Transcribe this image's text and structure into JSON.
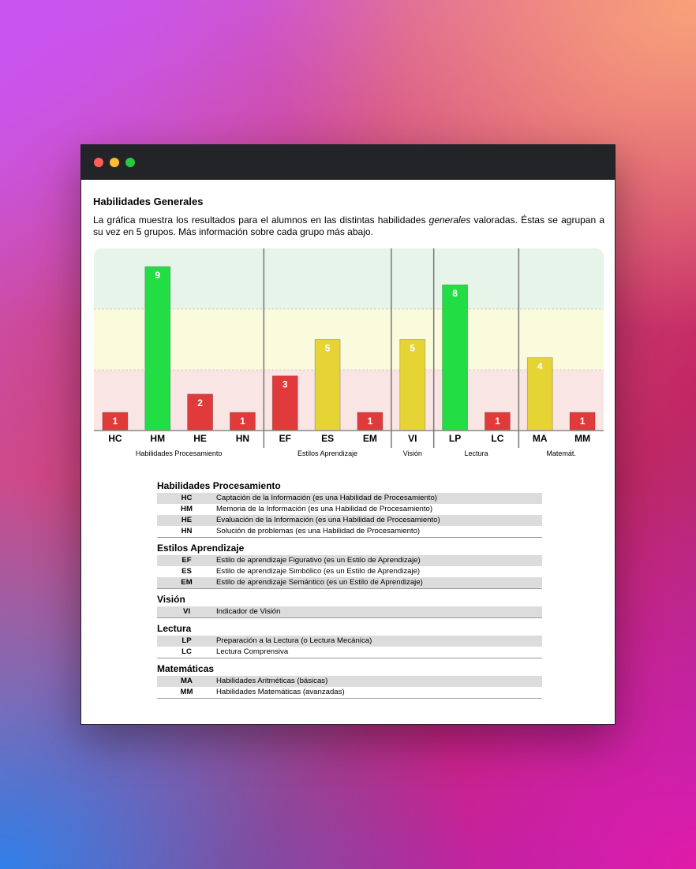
{
  "window": {
    "title_dots": [
      "close",
      "minimize",
      "zoom"
    ]
  },
  "section": {
    "title": "Habilidades Generales",
    "intro_before": "La gráfica muestra los resultados para el alumnos en las distintas habilidades ",
    "intro_em": "generales",
    "intro_after": " valoradas. Éstas se agrupan a su vez en 5 grupos. Más información sobre cada grupo más abajo."
  },
  "colors": {
    "band_high": "#e6f4ea",
    "band_mid": "#fafadc",
    "band_low": "#fae5e5",
    "bar_red": "#e03a3a",
    "bar_yellow": "#e6d435",
    "bar_green": "#22dd44"
  },
  "chart_data": {
    "type": "bar",
    "ylim": [
      0,
      10
    ],
    "bands": [
      {
        "from": 0,
        "to": 3.33,
        "level": "low"
      },
      {
        "from": 3.33,
        "to": 6.67,
        "level": "mid"
      },
      {
        "from": 6.67,
        "to": 10,
        "level": "high"
      }
    ],
    "categories": [
      "HC",
      "HM",
      "HE",
      "HN",
      "EF",
      "ES",
      "EM",
      "VI",
      "LP",
      "LC",
      "MA",
      "MM"
    ],
    "values": [
      1,
      9,
      2,
      1,
      3,
      5,
      1,
      5,
      8,
      1,
      4,
      1
    ],
    "bar_colors": [
      "red",
      "green",
      "red",
      "red",
      "red",
      "yellow",
      "red",
      "yellow",
      "green",
      "red",
      "yellow",
      "red"
    ],
    "groups": [
      {
        "label": "Habilidades Procesamiento",
        "count": 4
      },
      {
        "label": "Estilos Aprendizaje",
        "count": 3
      },
      {
        "label": "Visión",
        "count": 1
      },
      {
        "label": "Lectura",
        "count": 2
      },
      {
        "label": "Matemát.",
        "count": 2
      }
    ]
  },
  "legend": [
    {
      "title": "Habilidades Procesamiento",
      "items": [
        {
          "abbr": "HC",
          "desc": "Captación de la Información (es una Habilidad de Procesamiento)"
        },
        {
          "abbr": "HM",
          "desc": "Memoria de la Información (es una Habilidad de Procesamiento)"
        },
        {
          "abbr": "HE",
          "desc": "Evaluación de la Información (es una Habilidad de Procesamiento)"
        },
        {
          "abbr": "HN",
          "desc": "Solución de problemas (es una Habilidad de Procesamiento)"
        }
      ]
    },
    {
      "title": "Estilos Aprendizaje",
      "items": [
        {
          "abbr": "EF",
          "desc": "Estilo de aprendizaje Figurativo (es un Estilo de Aprendizaje)"
        },
        {
          "abbr": "ES",
          "desc": "Estilo de aprendizaje Simbólico (es un Estilo de Aprendizaje)"
        },
        {
          "abbr": "EM",
          "desc": "Estilo de aprendizaje Semántico (es un Estilo de Aprendizaje)"
        }
      ]
    },
    {
      "title": "Visión",
      "items": [
        {
          "abbr": "VI",
          "desc": "Indicador de Visión"
        }
      ]
    },
    {
      "title": "Lectura",
      "items": [
        {
          "abbr": "LP",
          "desc": "Preparación a la Lectura (o Lectura Mecánica)"
        },
        {
          "abbr": "LC",
          "desc": "Lectura Comprensiva"
        }
      ]
    },
    {
      "title": "Matemáticas",
      "items": [
        {
          "abbr": "MA",
          "desc": "Habilidades Aritméticas (básicas)"
        },
        {
          "abbr": "MM",
          "desc": "Habilidades Matemáticas (avanzadas)"
        }
      ]
    }
  ]
}
